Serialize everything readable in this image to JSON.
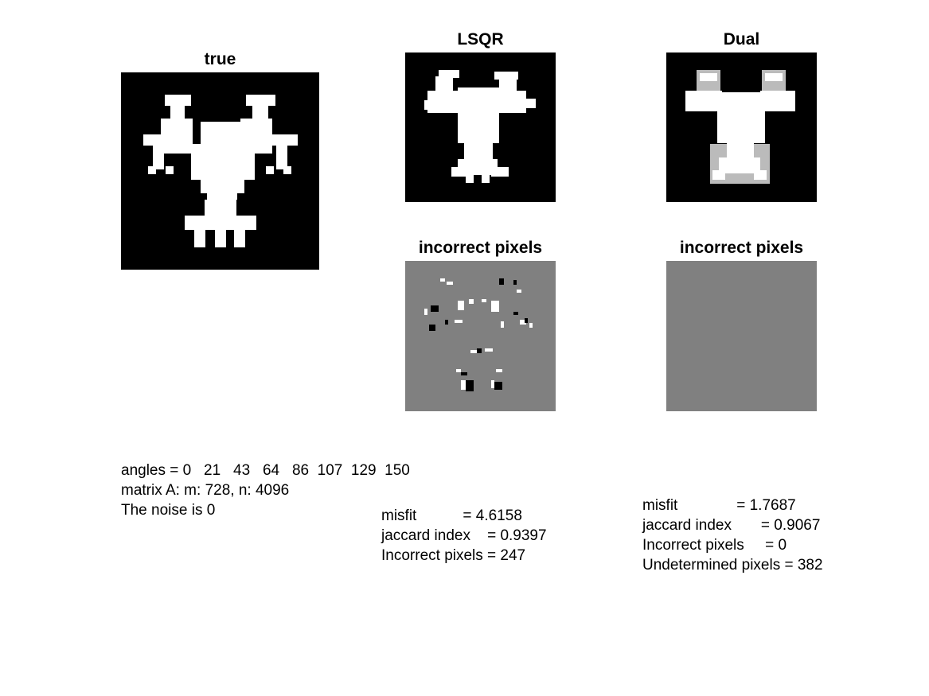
{
  "panels": {
    "true_title": "true",
    "lsqr_title": "LSQR",
    "dual_title": "Dual",
    "lsqr_incorrect_title": "incorrect pixels",
    "dual_incorrect_title": "incorrect pixels"
  },
  "info": {
    "angles_line": "angles = 0   21   43   64   86  107  129  150",
    "matrix_line": "matrix A: m: 728, n: 4096",
    "noise_line": "The noise is 0"
  },
  "lsqr_stats": {
    "misfit_line": "misfit           = 4.6158",
    "jaccard_line": "jaccard index    = 0.9397",
    "incorrect_line": "Incorrect pixels = 247"
  },
  "dual_stats": {
    "misfit_line": "misfit              = 1.7687",
    "jaccard_line": "jaccard index       = 0.9067",
    "incorrect_line": "Incorrect pixels     = 0",
    "undetermined_line": "Undetermined pixels = 382"
  },
  "colors": {
    "background": "#000000",
    "foreground": "#ffffff",
    "neutral_gray": "#808080"
  }
}
